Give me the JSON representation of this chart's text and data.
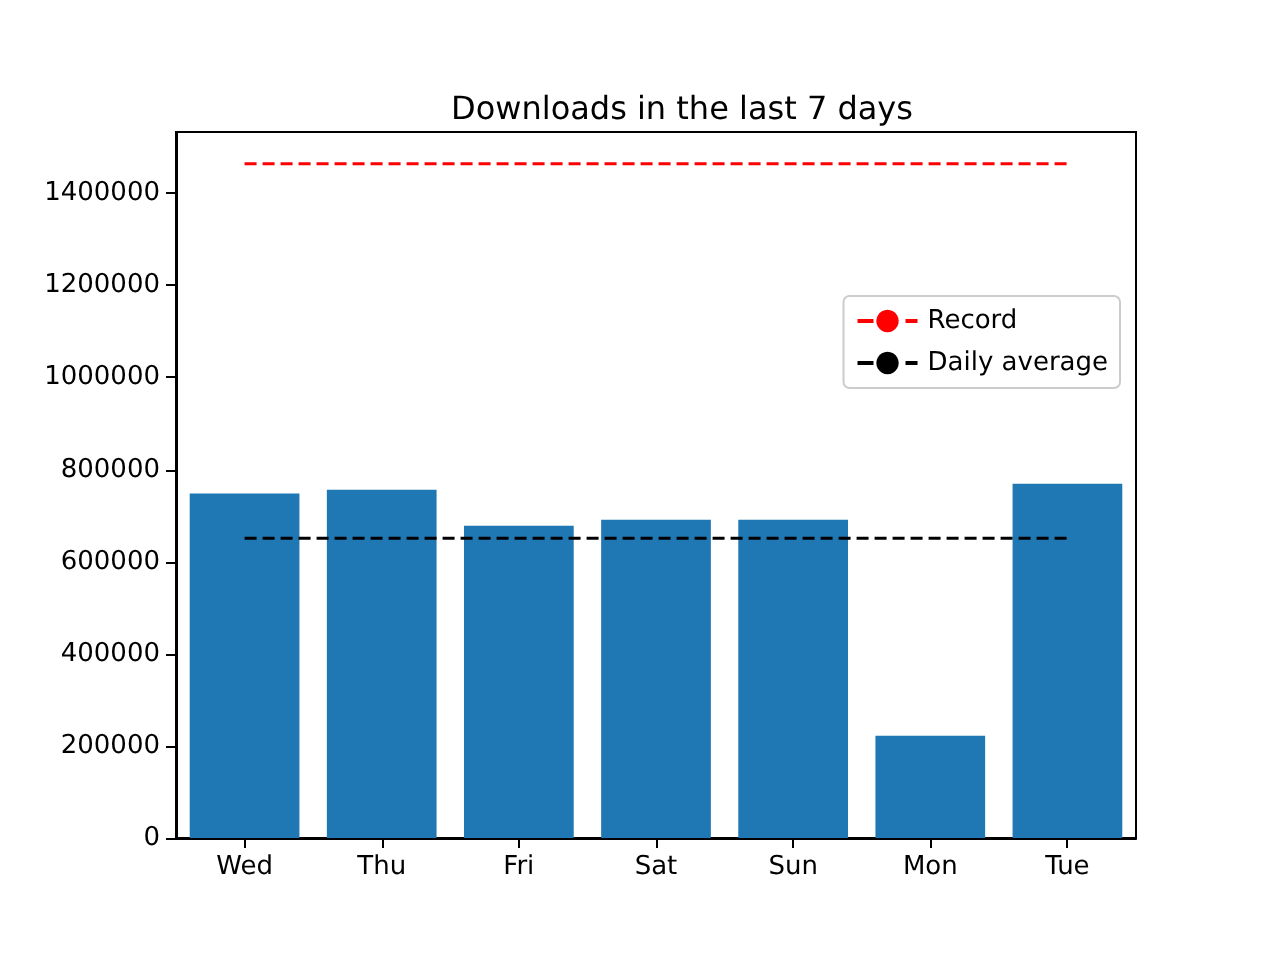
{
  "chart_data": {
    "type": "bar",
    "title": "Downloads in the last 7 days",
    "categories": [
      "Wed",
      "Thu",
      "Fri",
      "Sat",
      "Sun",
      "Mon",
      "Tue"
    ],
    "series": [
      {
        "color": "#1f77b4",
        "values": [
          748000,
          756000,
          678000,
          691000,
          691000,
          222000,
          769000
        ]
      },
      {
        "type": "line",
        "name": "Record",
        "color": "#ff0000",
        "line_style": "dashed",
        "marker": "none",
        "values": [
          1464000,
          1464000,
          1464000,
          1464000,
          1464000,
          1464000,
          1464000
        ]
      },
      {
        "type": "line",
        "name": "Daily average",
        "color": "#000000",
        "line_style": "dashed",
        "marker": "none",
        "values": [
          651000,
          651000,
          651000,
          651000,
          651000,
          651000,
          651000
        ]
      }
    ],
    "ylim": [
      0,
      1533000
    ],
    "yticks": [
      0,
      200000,
      400000,
      600000,
      800000,
      1000000,
      1200000,
      1400000
    ],
    "legend": "right"
  }
}
